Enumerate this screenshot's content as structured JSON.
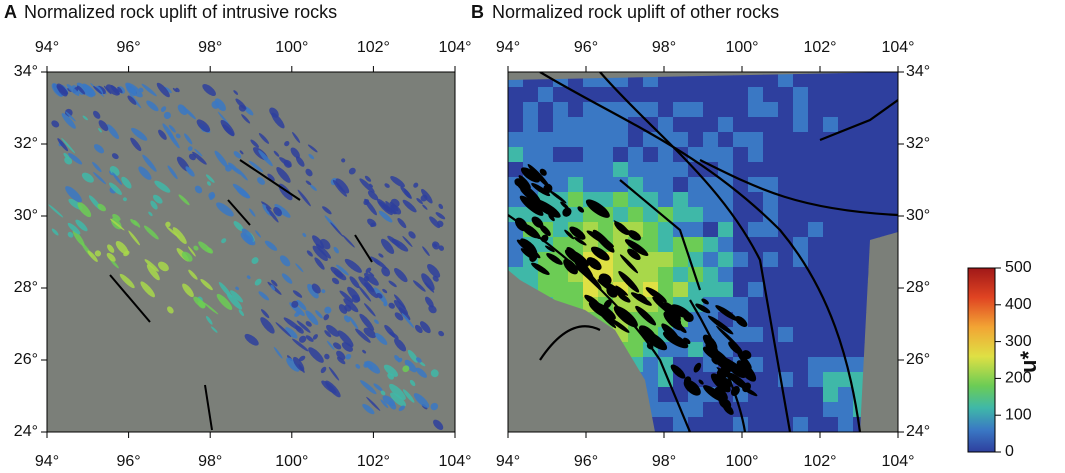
{
  "panels": [
    {
      "letter": "A",
      "title": "Normalized rock uplift of intrusive rocks"
    },
    {
      "letter": "B",
      "title": "Normalized rock uplift of other rocks"
    }
  ],
  "axes": {
    "xlim": [
      94,
      104
    ],
    "ylim": [
      24,
      34
    ],
    "xticks": [
      {
        "value": 94,
        "label": "94°"
      },
      {
        "value": 96,
        "label": "96°"
      },
      {
        "value": 98,
        "label": "98°"
      },
      {
        "value": 100,
        "label": "100°"
      },
      {
        "value": 102,
        "label": "102°"
      },
      {
        "value": 104,
        "label": "104°"
      }
    ],
    "yticks": [
      {
        "value": 24,
        "label": "24°"
      },
      {
        "value": 26,
        "label": "26°"
      },
      {
        "value": 28,
        "label": "28°"
      },
      {
        "value": 30,
        "label": "30°"
      },
      {
        "value": 32,
        "label": "32°"
      },
      {
        "value": 34,
        "label": "34°"
      }
    ]
  },
  "colorbar": {
    "label": "u*",
    "lim": [
      0,
      500
    ],
    "ticks": [
      0,
      100,
      200,
      300,
      400,
      500
    ]
  }
}
